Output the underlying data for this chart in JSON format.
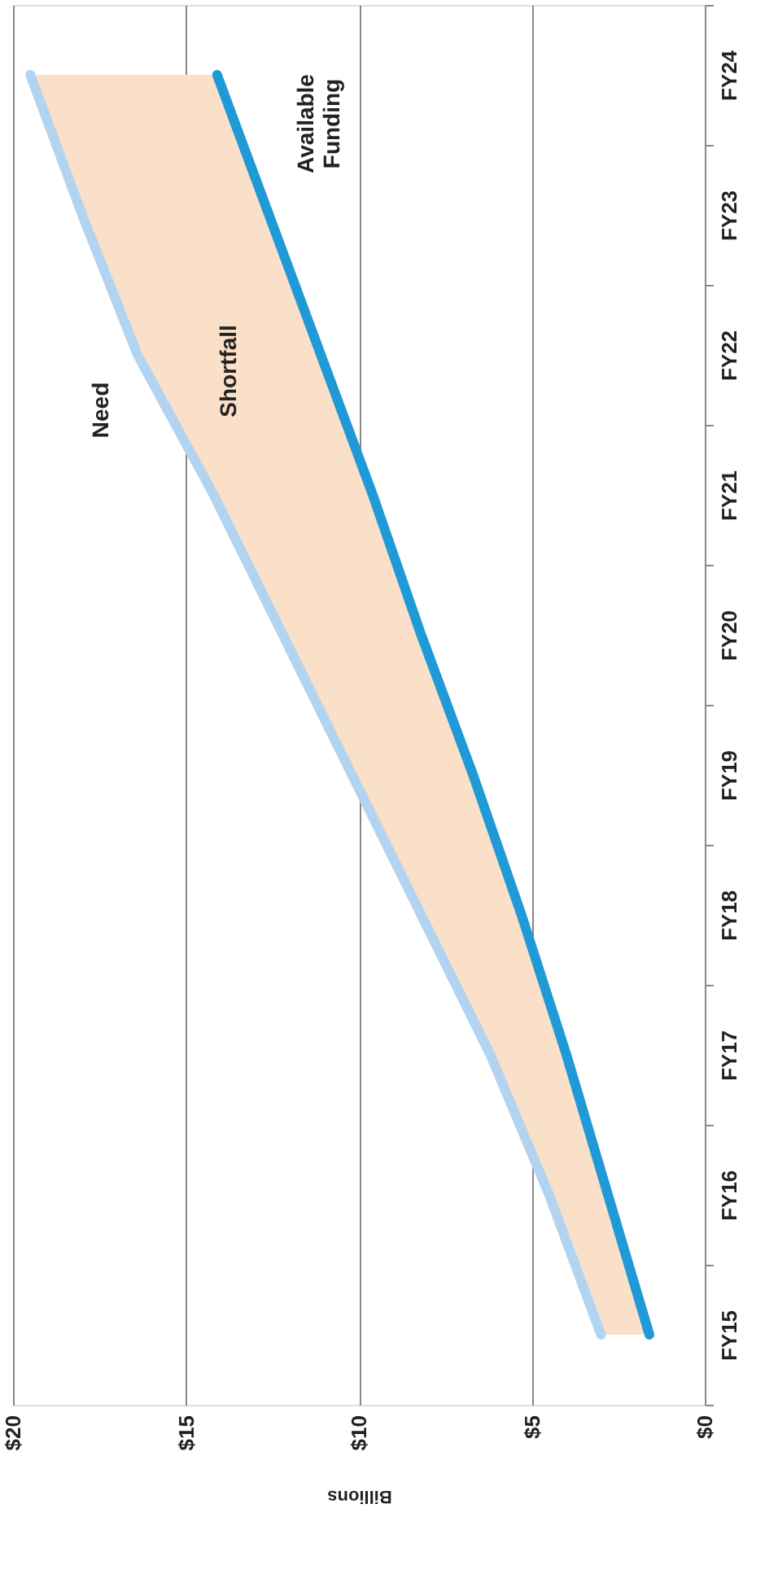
{
  "chart_data": {
    "type": "line",
    "categories": [
      "FY24",
      "FY23",
      "FY22",
      "FY21",
      "FY20",
      "FY19",
      "FY18",
      "FY17",
      "FY16",
      "FY15"
    ],
    "series": [
      {
        "name": "Need",
        "color": "#b3d4f0",
        "values": [
          19.5,
          18.0,
          16.4,
          14.2,
          12.2,
          10.2,
          8.2,
          6.2,
          4.5,
          3.0
        ],
        "lower": [
          14.1,
          12.6,
          11.1,
          9.6,
          8.2,
          6.7,
          5.3,
          4.0,
          2.8,
          1.6
        ],
        "upper": [
          19.5,
          18.0,
          16.4,
          14.2,
          12.2,
          10.2,
          8.2,
          6.2,
          4.5,
          3.0
        ]
      },
      {
        "name": "Available\nFunding",
        "color": "#1f9ad6",
        "values": [
          14.1,
          12.6,
          11.1,
          9.6,
          8.2,
          6.7,
          5.3,
          4.0,
          2.8,
          1.6
        ]
      }
    ],
    "orientation": "horizontal",
    "xlabel": "Billions",
    "xlim": [
      20,
      0
    ],
    "xticks": [
      {
        "value": 0,
        "label": "$0"
      },
      {
        "value": 5,
        "label": "$5"
      },
      {
        "value": 10,
        "label": "$10"
      },
      {
        "value": 15,
        "label": "$15"
      },
      {
        "value": 20,
        "label": "$20"
      }
    ],
    "grid": "x",
    "marker": "none",
    "line_style": "solid",
    "annotations": [
      "Shortfall"
    ]
  }
}
